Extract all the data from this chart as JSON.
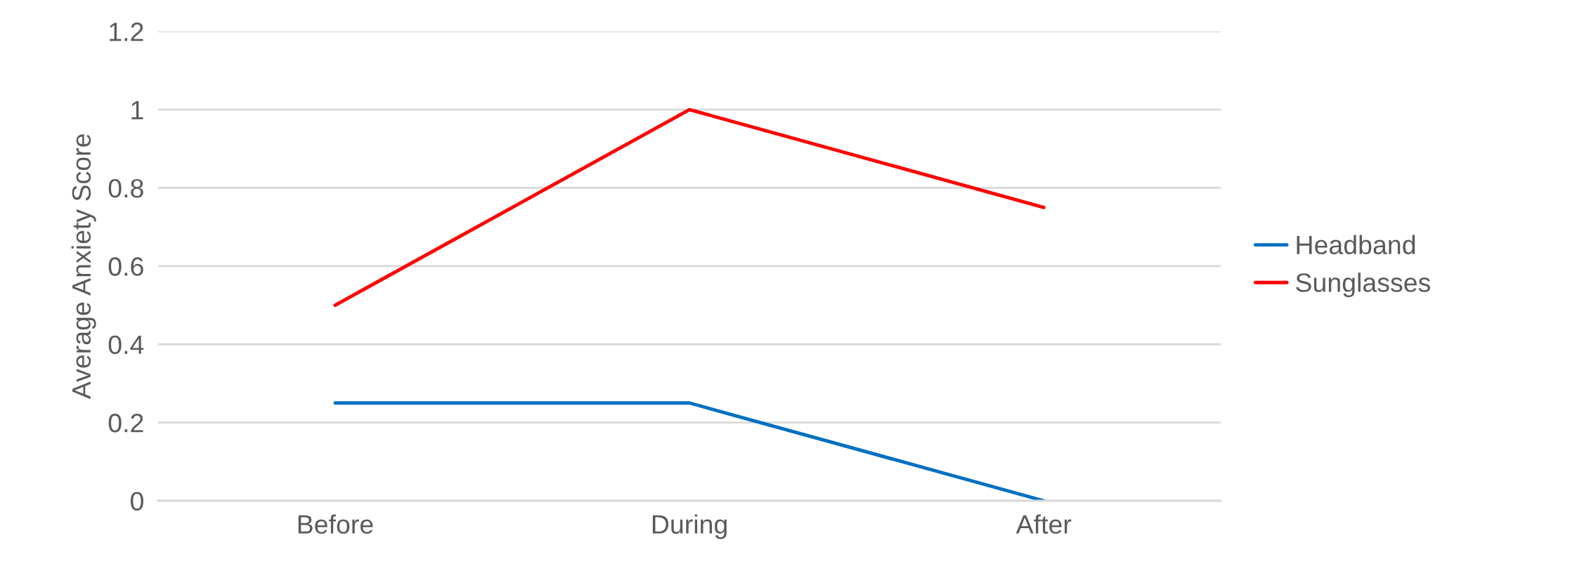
{
  "chart_data": {
    "type": "line",
    "ylabel": "Average Anxiety Score",
    "categories": [
      "Before",
      "During",
      "After"
    ],
    "series": [
      {
        "name": "Headband",
        "color": "#0070c0",
        "values": [
          0.25,
          0.25,
          0
        ]
      },
      {
        "name": "Sunglasses",
        "color": "#ff0000",
        "values": [
          0.5,
          1,
          0.75
        ]
      }
    ],
    "ylim": [
      0,
      1.2
    ],
    "yticks": [
      0,
      0.2,
      0.4,
      0.6,
      0.8,
      1,
      1.2
    ],
    "grid": "y",
    "legend": "right",
    "marker": "none",
    "line_style": "solid"
  }
}
